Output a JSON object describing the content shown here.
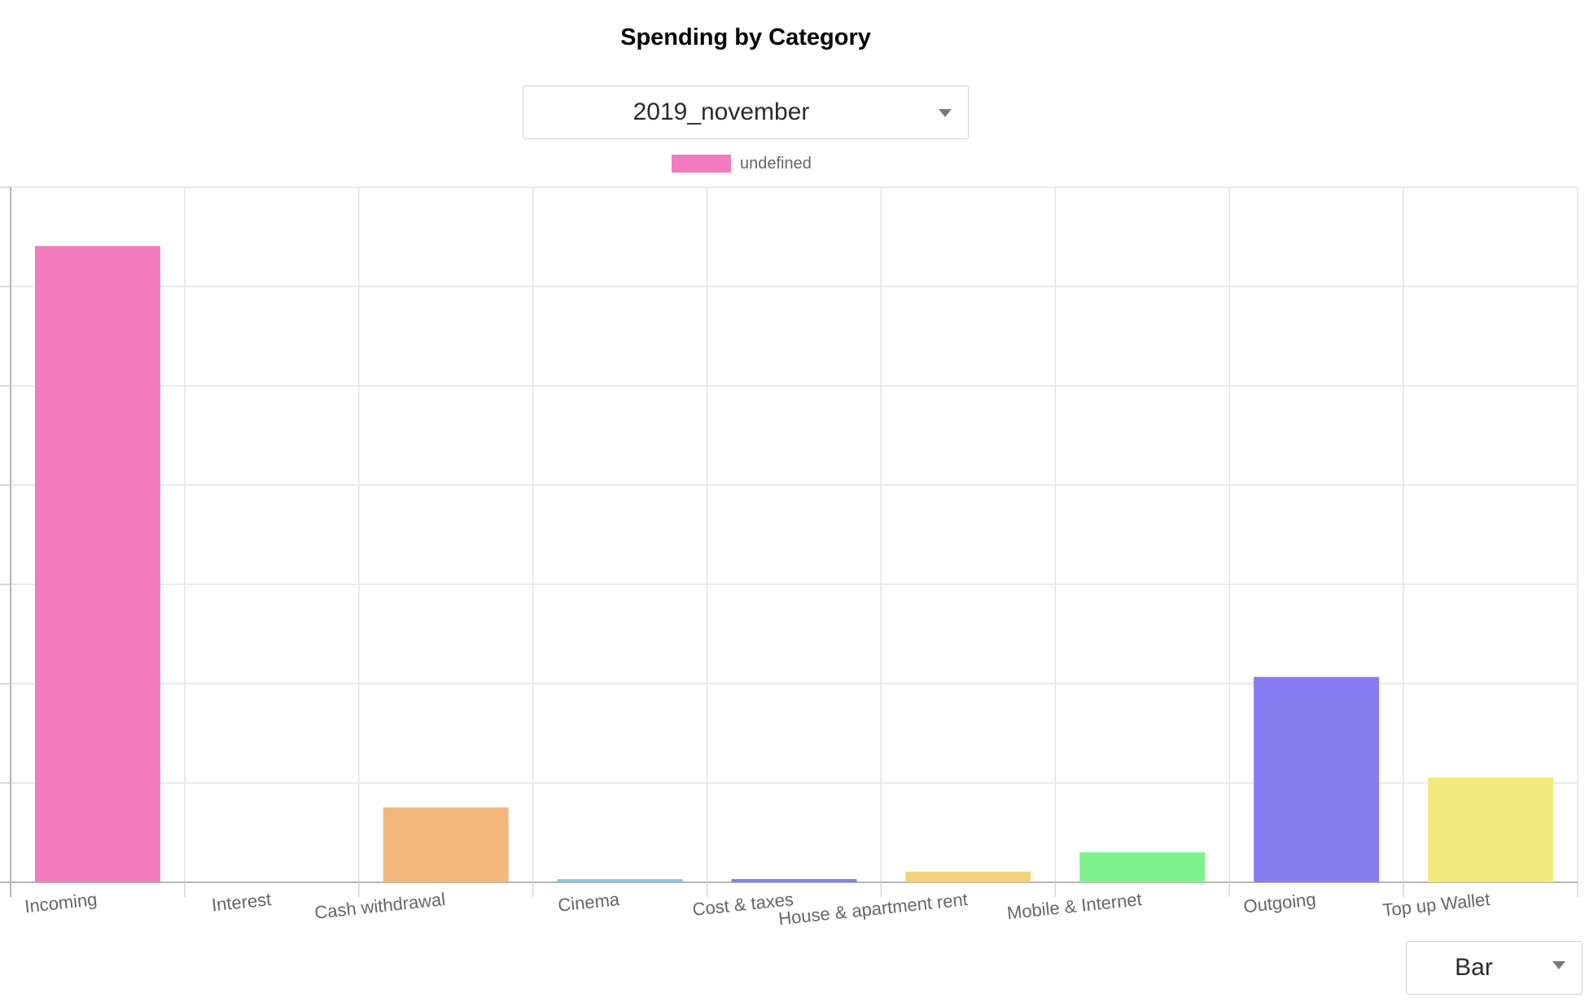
{
  "page": {
    "title": "Spending by Category"
  },
  "controls": {
    "period_select": {
      "value": "2019_november",
      "icon": "chevron-down-icon"
    },
    "chart_type_select": {
      "value": "Bar",
      "icon": "chevron-down-icon"
    }
  },
  "legend": {
    "label": "undefined",
    "color": "#f27bbd"
  },
  "chart_data": {
    "type": "bar",
    "title": "Spending by Category",
    "xlabel": "",
    "ylabel": "",
    "grid": true,
    "legend_position": "top-center",
    "ylim": [
      0,
      6.5
    ],
    "categories": [
      "Incoming",
      "Interest",
      "Cash withdrawal",
      "Cinema",
      "Cost & taxes",
      "House & apartment rent",
      "Mobile & Internet",
      "Outgoing",
      "Top up Wallet"
    ],
    "series": [
      {
        "name": "undefined",
        "values": [
          5.95,
          0,
          0.7,
          0.03,
          0.03,
          0.1,
          0.28,
          1.92,
          0.98
        ],
        "colors": [
          "#f27bbd",
          "#cccccc",
          "#f2b77b",
          "#87c5e8",
          "#7f82e6",
          "#f2d27b",
          "#7df28b",
          "#877bf2",
          "#f2e87b"
        ]
      }
    ]
  }
}
